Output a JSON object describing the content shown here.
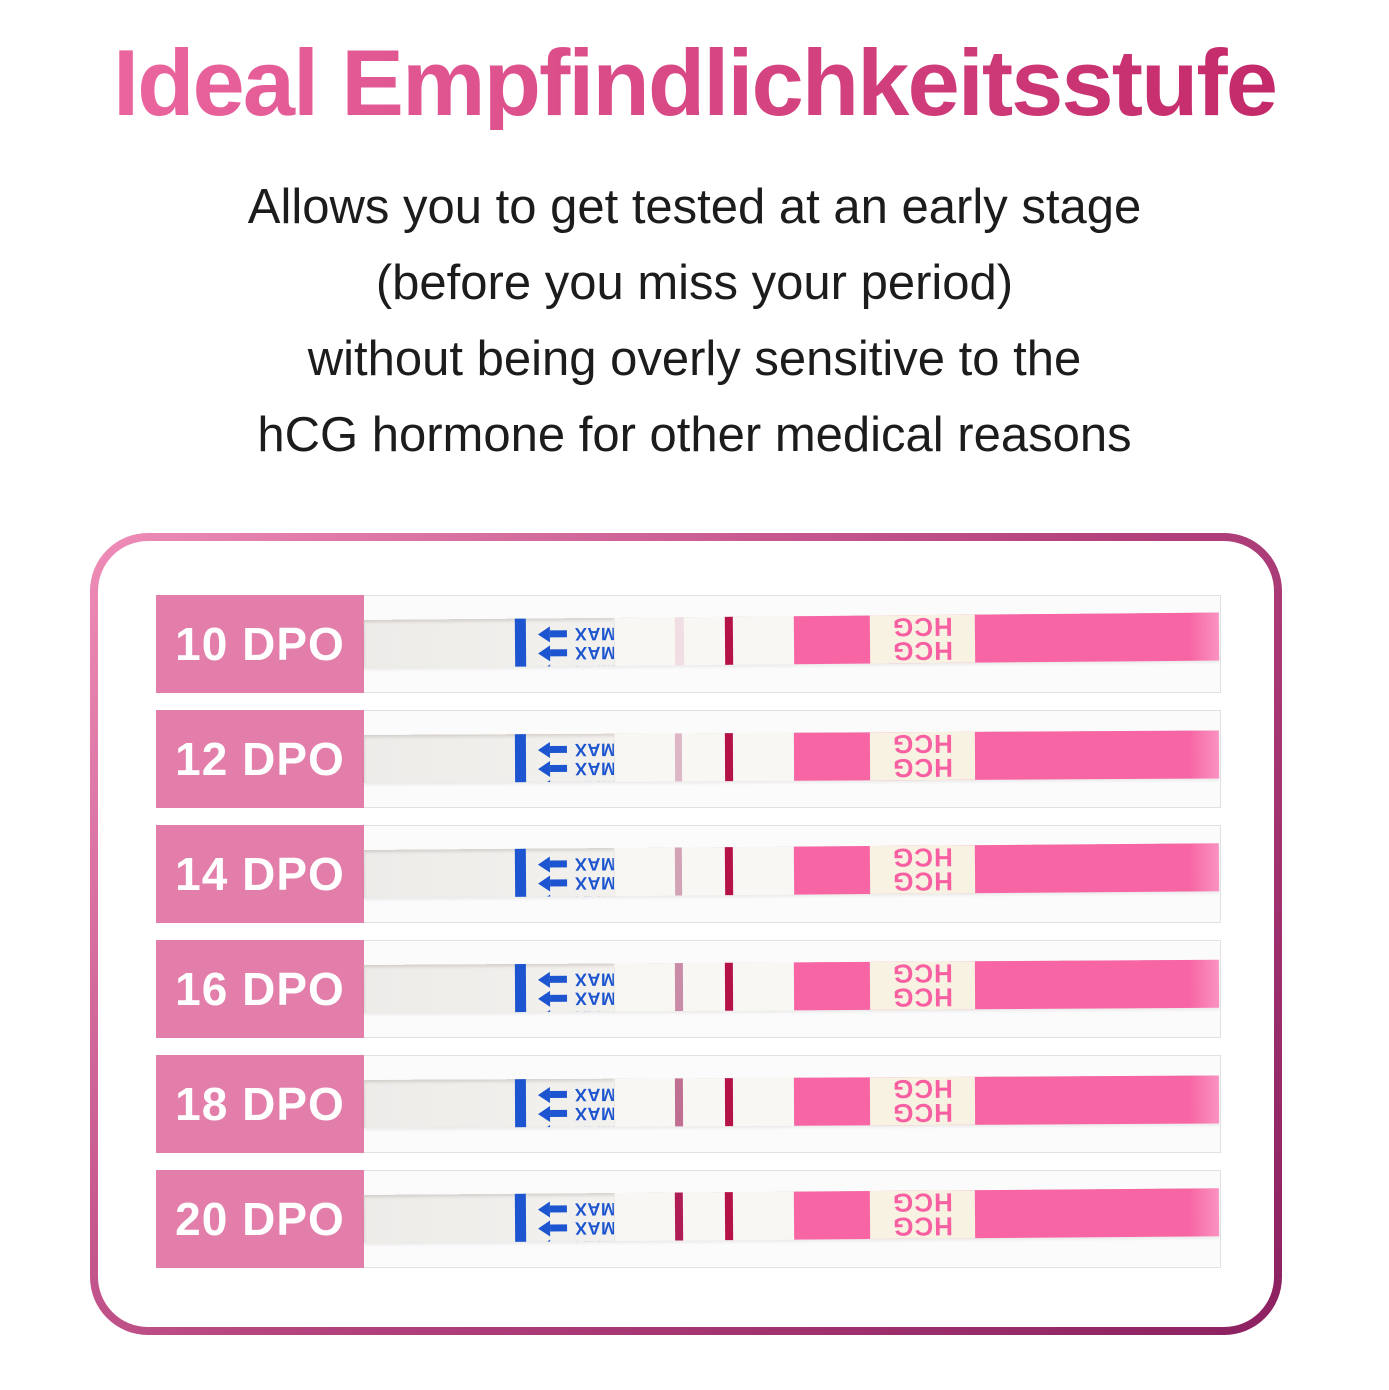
{
  "title": "Ideal Empfindlichkeitsstufe",
  "description_lines": [
    "Allows you to get tested at an early stage",
    "(before you miss your period)",
    "without being overly sensitive to the",
    "hCG hormone for other medical reasons"
  ],
  "panel": {
    "rows": [
      {
        "label": "10 DPO",
        "test_line_color": "#f1dde4",
        "test_line_width": 9
      },
      {
        "label": "12 DPO",
        "test_line_color": "#ddb7c6",
        "test_line_width": 7
      },
      {
        "label": "14 DPO",
        "test_line_color": "#d2a2b6",
        "test_line_width": 7
      },
      {
        "label": "16 DPO",
        "test_line_color": "#c98ba6",
        "test_line_width": 8
      },
      {
        "label": "18 DPO",
        "test_line_color": "#bf6f92",
        "test_line_width": 8
      },
      {
        "label": "20 DPO",
        "test_line_color": "#b01d55",
        "test_line_width": 8
      }
    ],
    "strip": {
      "max_label": "MAX",
      "hcg_label": "HCG",
      "blue_color": "#1c55cf",
      "control_line_color": "#b51348",
      "handle_color": "#f765a4",
      "hcg_text_color": "#f75fa2",
      "hcg_bg_color": "#f8f2e2"
    },
    "label_bg_color": "#e27ea9",
    "border_gradient": [
      "#ee8cb6",
      "#b4437e",
      "#8c2161"
    ]
  },
  "colors": {
    "title_gradient_start": "#ee6ba4",
    "title_gradient_end": "#c02465",
    "body_text": "#1c1c1c"
  }
}
